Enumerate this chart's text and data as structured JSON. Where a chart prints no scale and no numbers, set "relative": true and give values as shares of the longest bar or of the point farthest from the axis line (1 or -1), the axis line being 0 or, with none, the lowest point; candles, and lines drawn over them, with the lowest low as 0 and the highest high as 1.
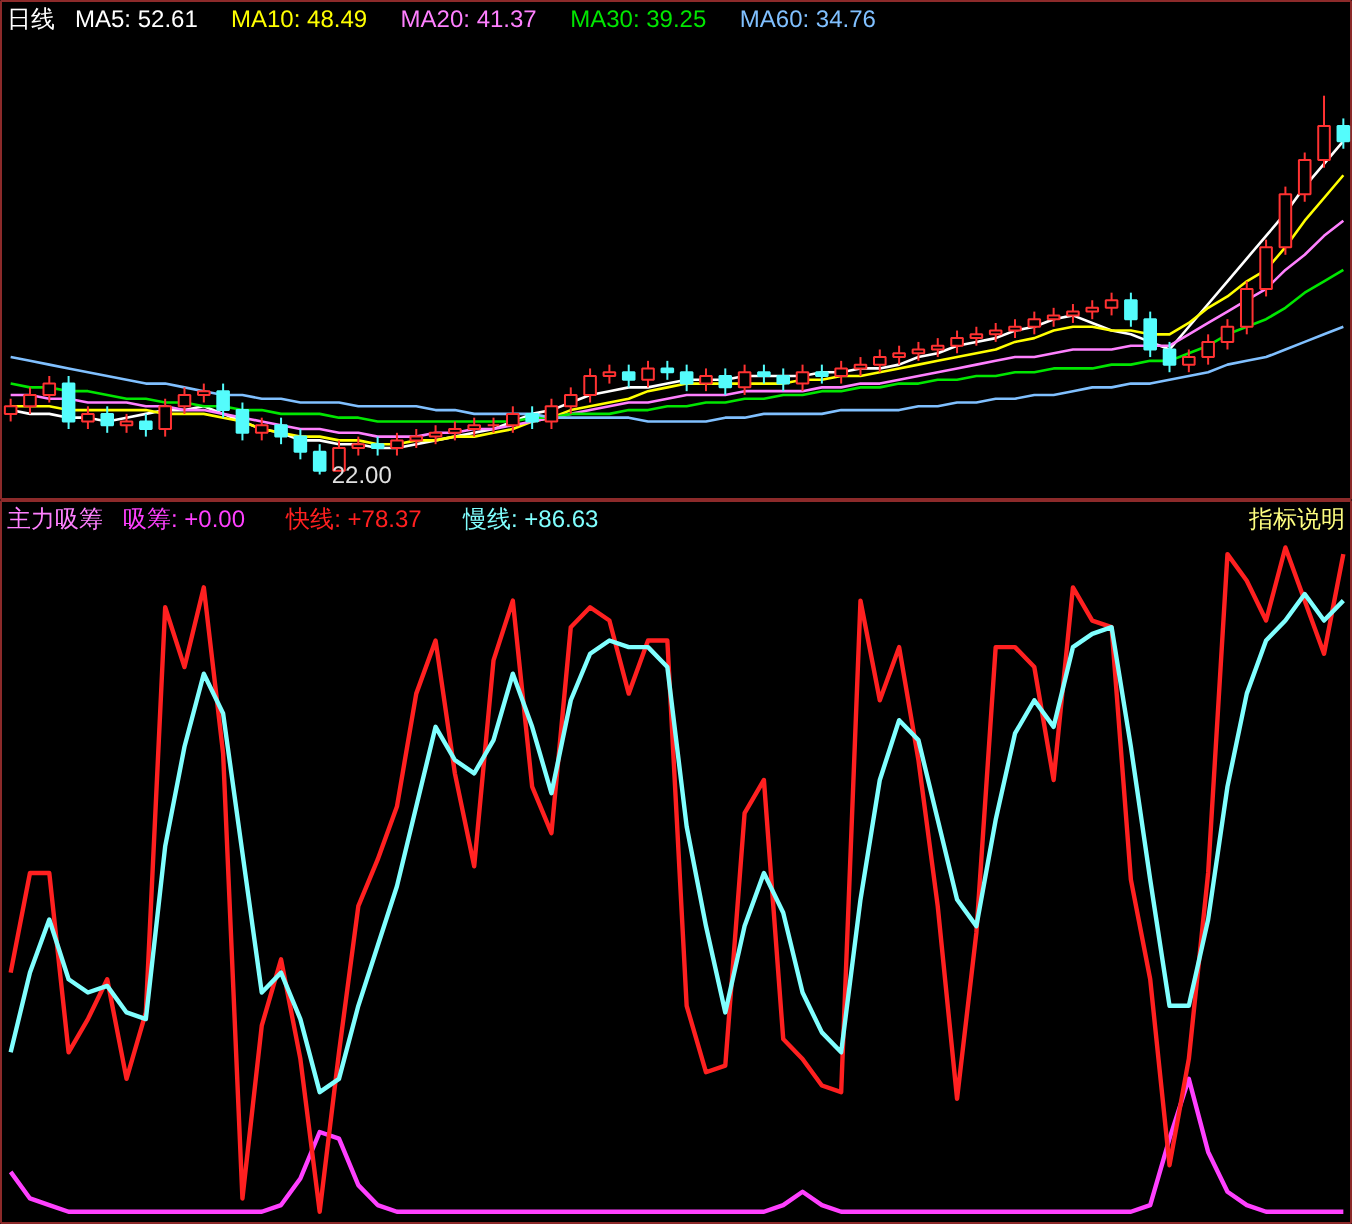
{
  "chart_data": [
    {
      "type": "candlestick",
      "title": "日线",
      "relative": true,
      "legend": "top left",
      "categories": [
        null,
        null,
        null,
        null,
        null,
        null,
        null,
        null,
        null,
        null,
        null,
        null,
        null,
        null,
        null,
        null,
        null,
        null,
        null,
        null,
        null,
        null,
        null,
        null,
        null,
        null,
        null,
        null,
        null,
        null,
        null,
        null,
        null,
        null,
        null,
        null,
        null,
        null,
        null,
        null,
        null,
        null,
        null,
        null,
        null,
        null,
        null,
        null,
        null,
        null,
        null,
        null,
        null,
        null,
        null,
        null,
        null,
        null,
        null,
        null,
        null,
        null,
        null,
        null,
        null,
        null,
        null,
        null,
        null,
        null
      ],
      "ohlc": [
        [
          0.16,
          0.2,
          0.14,
          0.18
        ],
        [
          0.18,
          0.23,
          0.16,
          0.21
        ],
        [
          0.21,
          0.26,
          0.19,
          0.24
        ],
        [
          0.24,
          0.26,
          0.12,
          0.14
        ],
        [
          0.14,
          0.18,
          0.12,
          0.16
        ],
        [
          0.16,
          0.18,
          0.11,
          0.13
        ],
        [
          0.13,
          0.16,
          0.11,
          0.14
        ],
        [
          0.14,
          0.16,
          0.1,
          0.12
        ],
        [
          0.12,
          0.2,
          0.1,
          0.18
        ],
        [
          0.18,
          0.23,
          0.16,
          0.21
        ],
        [
          0.21,
          0.24,
          0.19,
          0.22
        ],
        [
          0.22,
          0.24,
          0.15,
          0.17
        ],
        [
          0.17,
          0.19,
          0.09,
          0.11
        ],
        [
          0.11,
          0.15,
          0.09,
          0.13
        ],
        [
          0.13,
          0.15,
          0.08,
          0.1
        ],
        [
          0.1,
          0.12,
          0.04,
          0.06
        ],
        [
          0.06,
          0.08,
          0.0,
          0.01
        ],
        [
          0.01,
          0.09,
          0.01,
          0.07
        ],
        [
          0.07,
          0.1,
          0.05,
          0.08
        ],
        [
          0.08,
          0.1,
          0.05,
          0.07
        ],
        [
          0.07,
          0.11,
          0.05,
          0.09
        ],
        [
          0.09,
          0.12,
          0.07,
          0.1
        ],
        [
          0.1,
          0.13,
          0.08,
          0.11
        ],
        [
          0.11,
          0.14,
          0.09,
          0.12
        ],
        [
          0.12,
          0.15,
          0.1,
          0.13
        ],
        [
          0.13,
          0.15,
          0.11,
          0.13
        ],
        [
          0.13,
          0.18,
          0.11,
          0.16
        ],
        [
          0.16,
          0.18,
          0.12,
          0.14
        ],
        [
          0.14,
          0.2,
          0.12,
          0.18
        ],
        [
          0.18,
          0.23,
          0.16,
          0.21
        ],
        [
          0.21,
          0.28,
          0.19,
          0.26
        ],
        [
          0.26,
          0.29,
          0.24,
          0.27
        ],
        [
          0.27,
          0.29,
          0.23,
          0.25
        ],
        [
          0.25,
          0.3,
          0.23,
          0.28
        ],
        [
          0.28,
          0.3,
          0.25,
          0.27
        ],
        [
          0.27,
          0.29,
          0.22,
          0.24
        ],
        [
          0.24,
          0.28,
          0.22,
          0.26
        ],
        [
          0.26,
          0.28,
          0.21,
          0.23
        ],
        [
          0.23,
          0.29,
          0.21,
          0.27
        ],
        [
          0.27,
          0.29,
          0.24,
          0.26
        ],
        [
          0.26,
          0.28,
          0.22,
          0.24
        ],
        [
          0.24,
          0.29,
          0.22,
          0.27
        ],
        [
          0.27,
          0.29,
          0.24,
          0.26
        ],
        [
          0.26,
          0.3,
          0.24,
          0.28
        ],
        [
          0.28,
          0.31,
          0.26,
          0.29
        ],
        [
          0.29,
          0.33,
          0.27,
          0.31
        ],
        [
          0.31,
          0.34,
          0.29,
          0.32
        ],
        [
          0.32,
          0.35,
          0.3,
          0.33
        ],
        [
          0.33,
          0.36,
          0.31,
          0.34
        ],
        [
          0.34,
          0.38,
          0.32,
          0.36
        ],
        [
          0.36,
          0.39,
          0.34,
          0.37
        ],
        [
          0.37,
          0.4,
          0.35,
          0.38
        ],
        [
          0.38,
          0.41,
          0.36,
          0.39
        ],
        [
          0.39,
          0.43,
          0.37,
          0.41
        ],
        [
          0.41,
          0.44,
          0.39,
          0.42
        ],
        [
          0.42,
          0.45,
          0.4,
          0.43
        ],
        [
          0.43,
          0.46,
          0.41,
          0.44
        ],
        [
          0.44,
          0.48,
          0.42,
          0.46
        ],
        [
          0.46,
          0.48,
          0.39,
          0.41
        ],
        [
          0.41,
          0.43,
          0.31,
          0.33
        ],
        [
          0.33,
          0.35,
          0.27,
          0.29
        ],
        [
          0.29,
          0.33,
          0.27,
          0.31
        ],
        [
          0.31,
          0.37,
          0.29,
          0.35
        ],
        [
          0.35,
          0.41,
          0.33,
          0.39
        ],
        [
          0.39,
          0.51,
          0.37,
          0.49
        ],
        [
          0.49,
          0.62,
          0.47,
          0.6
        ],
        [
          0.6,
          0.76,
          0.58,
          0.74
        ],
        [
          0.74,
          0.85,
          0.72,
          0.83
        ],
        [
          0.83,
          1.0,
          0.81,
          0.92
        ],
        [
          0.92,
          0.94,
          0.86,
          0.88
        ]
      ],
      "colors": [
        "#ff3232",
        "#ff3232",
        "#ff3232",
        "#54fcfc",
        "#ff3232",
        "#54fcfc",
        "#ff3232",
        "#54fcfc",
        "#ff3232",
        "#ff3232",
        "#ff3232",
        "#54fcfc",
        "#54fcfc",
        "#ff3232",
        "#54fcfc",
        "#54fcfc",
        "#54fcfc",
        "#ff3232",
        "#ff3232",
        "#54fcfc",
        "#ff3232",
        "#ff3232",
        "#ff3232",
        "#ff3232",
        "#ff3232",
        "#ff3232",
        "#ff3232",
        "#54fcfc",
        "#ff3232",
        "#ff3232",
        "#ff3232",
        "#ff3232",
        "#54fcfc",
        "#ff3232",
        "#54fcfc",
        "#54fcfc",
        "#ff3232",
        "#54fcfc",
        "#ff3232",
        "#54fcfc",
        "#54fcfc",
        "#ff3232",
        "#54fcfc",
        "#ff3232",
        "#ff3232",
        "#ff3232",
        "#ff3232",
        "#ff3232",
        "#ff3232",
        "#ff3232",
        "#ff3232",
        "#ff3232",
        "#ff3232",
        "#ff3232",
        "#ff3232",
        "#ff3232",
        "#ff3232",
        "#ff3232",
        "#54fcfc",
        "#54fcfc",
        "#54fcfc",
        "#ff3232",
        "#ff3232",
        "#ff3232",
        "#ff3232",
        "#ff3232",
        "#ff3232",
        "#ff3232",
        "#ff3232",
        "#54fcfc"
      ],
      "series": [
        {
          "name": "MA5: 52.61",
          "type": "line",
          "color": "#ffffff",
          "values": [
            0.17,
            0.16,
            0.16,
            0.15,
            0.15,
            0.14,
            0.15,
            0.16,
            0.17,
            0.17,
            0.18,
            0.16,
            0.14,
            0.12,
            0.11,
            0.09,
            0.09,
            0.08,
            0.08,
            0.07,
            0.07,
            0.08,
            0.09,
            0.1,
            0.11,
            0.12,
            0.14,
            0.16,
            0.17,
            0.19,
            0.21,
            0.22,
            0.23,
            0.23,
            0.24,
            0.25,
            0.25,
            0.25,
            0.26,
            0.26,
            0.26,
            0.26,
            0.27,
            0.27,
            0.28,
            0.28,
            0.29,
            0.31,
            0.32,
            0.34,
            0.35,
            0.36,
            0.38,
            0.39,
            0.41,
            0.42,
            0.4,
            0.38,
            0.37,
            0.35,
            0.33,
            0.39,
            0.45,
            0.51,
            0.57,
            0.63,
            0.69,
            0.76,
            0.82,
            0.88
          ]
        },
        {
          "name": "MA10: 48.49",
          "type": "line",
          "color": "#ffff00",
          "values": [
            0.18,
            0.18,
            0.18,
            0.17,
            0.17,
            0.17,
            0.17,
            0.17,
            0.16,
            0.16,
            0.16,
            0.15,
            0.14,
            0.12,
            0.11,
            0.1,
            0.1,
            0.09,
            0.09,
            0.08,
            0.08,
            0.09,
            0.09,
            0.1,
            0.1,
            0.11,
            0.12,
            0.14,
            0.15,
            0.17,
            0.18,
            0.19,
            0.2,
            0.22,
            0.23,
            0.24,
            0.24,
            0.24,
            0.24,
            0.24,
            0.24,
            0.25,
            0.25,
            0.26,
            0.26,
            0.27,
            0.28,
            0.29,
            0.3,
            0.31,
            0.32,
            0.33,
            0.35,
            0.36,
            0.38,
            0.39,
            0.39,
            0.38,
            0.38,
            0.37,
            0.37,
            0.4,
            0.44,
            0.47,
            0.51,
            0.54,
            0.6,
            0.67,
            0.73,
            0.79
          ]
        },
        {
          "name": "MA20: 41.37",
          "type": "line",
          "color": "#ff80ff",
          "values": [
            0.21,
            0.21,
            0.2,
            0.2,
            0.19,
            0.19,
            0.19,
            0.18,
            0.18,
            0.17,
            0.17,
            0.16,
            0.15,
            0.14,
            0.13,
            0.12,
            0.12,
            0.11,
            0.11,
            0.1,
            0.1,
            0.1,
            0.11,
            0.11,
            0.12,
            0.12,
            0.13,
            0.14,
            0.15,
            0.16,
            0.17,
            0.18,
            0.19,
            0.19,
            0.2,
            0.21,
            0.21,
            0.21,
            0.22,
            0.22,
            0.22,
            0.22,
            0.23,
            0.23,
            0.24,
            0.24,
            0.25,
            0.26,
            0.27,
            0.28,
            0.29,
            0.3,
            0.31,
            0.31,
            0.32,
            0.33,
            0.33,
            0.33,
            0.34,
            0.34,
            0.34,
            0.37,
            0.4,
            0.43,
            0.46,
            0.49,
            0.54,
            0.58,
            0.63,
            0.67
          ]
        },
        {
          "name": "MA30: 39.25",
          "type": "line",
          "color": "#00e600",
          "values": [
            0.24,
            0.23,
            0.23,
            0.22,
            0.22,
            0.21,
            0.2,
            0.2,
            0.19,
            0.19,
            0.18,
            0.18,
            0.17,
            0.17,
            0.16,
            0.16,
            0.16,
            0.15,
            0.15,
            0.14,
            0.14,
            0.14,
            0.14,
            0.14,
            0.14,
            0.14,
            0.14,
            0.15,
            0.15,
            0.16,
            0.16,
            0.16,
            0.17,
            0.17,
            0.18,
            0.18,
            0.19,
            0.19,
            0.2,
            0.2,
            0.21,
            0.21,
            0.22,
            0.22,
            0.23,
            0.23,
            0.24,
            0.24,
            0.25,
            0.25,
            0.26,
            0.26,
            0.27,
            0.27,
            0.28,
            0.28,
            0.28,
            0.29,
            0.29,
            0.3,
            0.3,
            0.32,
            0.34,
            0.37,
            0.39,
            0.41,
            0.44,
            0.48,
            0.51,
            0.54
          ]
        },
        {
          "name": "MA60: 34.76",
          "type": "line",
          "color": "#80c0ff",
          "values": [
            0.31,
            0.3,
            0.29,
            0.28,
            0.27,
            0.26,
            0.25,
            0.24,
            0.24,
            0.23,
            0.22,
            0.21,
            0.21,
            0.2,
            0.2,
            0.19,
            0.19,
            0.19,
            0.18,
            0.18,
            0.18,
            0.18,
            0.17,
            0.17,
            0.16,
            0.16,
            0.16,
            0.16,
            0.15,
            0.15,
            0.15,
            0.15,
            0.15,
            0.14,
            0.14,
            0.14,
            0.14,
            0.15,
            0.15,
            0.16,
            0.16,
            0.16,
            0.16,
            0.17,
            0.17,
            0.17,
            0.17,
            0.18,
            0.18,
            0.19,
            0.19,
            0.2,
            0.2,
            0.21,
            0.21,
            0.22,
            0.23,
            0.23,
            0.24,
            0.24,
            0.25,
            0.26,
            0.27,
            0.29,
            0.3,
            0.31,
            0.33,
            0.35,
            0.37,
            0.39
          ]
        }
      ],
      "annotations": [
        "22.00"
      ]
    },
    {
      "type": "line",
      "title": "主力吸筹",
      "relative": true,
      "legend": "top left",
      "categories": [
        null,
        null,
        null,
        null,
        null,
        null,
        null,
        null,
        null,
        null,
        null,
        null,
        null,
        null,
        null,
        null,
        null,
        null,
        null,
        null,
        null,
        null,
        null,
        null,
        null,
        null,
        null,
        null,
        null,
        null,
        null,
        null,
        null,
        null,
        null,
        null,
        null,
        null,
        null,
        null,
        null,
        null,
        null,
        null,
        null,
        null,
        null,
        null,
        null,
        null,
        null,
        null,
        null,
        null,
        null,
        null,
        null,
        null,
        null,
        null,
        null,
        null,
        null,
        null,
        null,
        null,
        null,
        null,
        null,
        null
      ],
      "series": [
        {
          "name": "吸筹: +0.00",
          "color": "#ff40ff",
          "values": [
            0.06,
            0.02,
            0.01,
            0,
            0,
            0,
            0,
            0,
            0,
            0,
            0,
            0,
            0,
            0,
            0.01,
            0.05,
            0.12,
            0.11,
            0.04,
            0.01,
            0,
            0,
            0,
            0,
            0,
            0,
            0,
            0,
            0,
            0,
            0,
            0,
            0,
            0,
            0,
            0,
            0,
            0,
            0,
            0,
            0.01,
            0.03,
            0.01,
            0,
            0,
            0,
            0,
            0,
            0,
            0,
            0,
            0,
            0,
            0,
            0,
            0,
            0,
            0,
            0,
            0.01,
            0.11,
            0.2,
            0.09,
            0.03,
            0.01,
            0,
            0,
            0,
            0,
            0
          ]
        },
        {
          "name": "快线: +78.37",
          "color": "#ff2020",
          "values": [
            0.36,
            0.51,
            0.51,
            0.24,
            0.29,
            0.35,
            0.2,
            0.3,
            0.91,
            0.82,
            0.94,
            0.69,
            0.02,
            0.28,
            0.38,
            0.23,
            0.0,
            0.24,
            0.46,
            0.53,
            0.61,
            0.78,
            0.86,
            0.66,
            0.52,
            0.83,
            0.92,
            0.64,
            0.57,
            0.88,
            0.91,
            0.89,
            0.78,
            0.86,
            0.86,
            0.31,
            0.21,
            0.22,
            0.6,
            0.65,
            0.26,
            0.23,
            0.19,
            0.18,
            0.92,
            0.77,
            0.85,
            0.68,
            0.46,
            0.17,
            0.42,
            0.85,
            0.85,
            0.82,
            0.65,
            0.94,
            0.89,
            0.88,
            0.5,
            0.35,
            0.07,
            0.23,
            0.51,
            0.99,
            0.95,
            0.89,
            1.0,
            0.92,
            0.84,
            0.99
          ]
        },
        {
          "name": "慢线: +86.63",
          "color": "#80ffff",
          "values": [
            0.24,
            0.36,
            0.44,
            0.35,
            0.33,
            0.34,
            0.3,
            0.29,
            0.55,
            0.7,
            0.81,
            0.75,
            0.54,
            0.33,
            0.36,
            0.29,
            0.18,
            0.2,
            0.31,
            0.4,
            0.49,
            0.61,
            0.73,
            0.68,
            0.66,
            0.71,
            0.81,
            0.73,
            0.63,
            0.77,
            0.84,
            0.86,
            0.85,
            0.85,
            0.82,
            0.58,
            0.43,
            0.3,
            0.43,
            0.51,
            0.45,
            0.33,
            0.27,
            0.24,
            0.47,
            0.65,
            0.74,
            0.71,
            0.59,
            0.47,
            0.43,
            0.59,
            0.72,
            0.77,
            0.73,
            0.85,
            0.87,
            0.88,
            0.7,
            0.5,
            0.31,
            0.31,
            0.44,
            0.64,
            0.78,
            0.86,
            0.89,
            0.93,
            0.89,
            0.92
          ]
        }
      ],
      "annotations": [
        "指标说明"
      ]
    }
  ]
}
